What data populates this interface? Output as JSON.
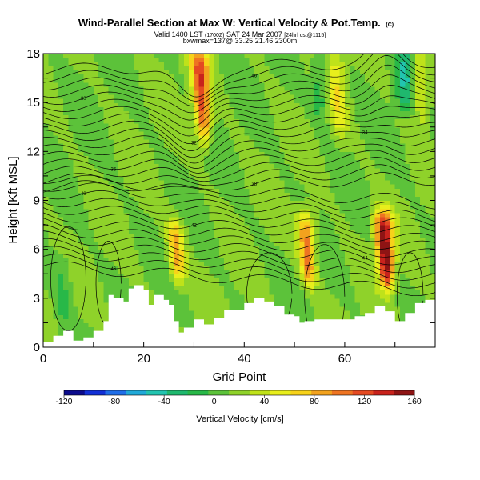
{
  "chart_data": {
    "type": "heatmap",
    "title": "Wind-Parallel Section at Max W: Vertical Velocity & Pot.Temp.",
    "title_unit": "(C)",
    "subtitle_parts": [
      "Valid 1400 LST",
      "(1700Z)",
      "SAT 24 Mar 2007",
      "[24hrl cst@1115]"
    ],
    "subtitle_line2": "bxwmax=137@ 33.25,21.46,2300m",
    "xlabel": "Grid Point",
    "ylabel": "Height [Kft MSL]",
    "xlim": [
      0,
      78
    ],
    "ylim": [
      0,
      18
    ],
    "x_ticks": [
      0,
      20,
      40,
      60
    ],
    "y_ticks": [
      0,
      3,
      6,
      9,
      12,
      15,
      18
    ],
    "colorbar": {
      "title": "Vertical Velocity [cm/s]",
      "min": -120,
      "max": 160,
      "tick_labels": [
        "-120",
        "-80",
        "-40",
        "0",
        "40",
        "80",
        "120",
        "160"
      ],
      "tick_values": [
        -120,
        -80,
        -40,
        0,
        40,
        80,
        120,
        160
      ],
      "colors": [
        "#0b0b8c",
        "#1230d6",
        "#1f6ee8",
        "#20a9d8",
        "#22c4b0",
        "#1fb86e",
        "#28b848",
        "#5cc23a",
        "#8fd22a",
        "#bfe21a",
        "#e8ee1c",
        "#f7d21a",
        "#f2a21e",
        "#ee7422",
        "#e44a22",
        "#c8221c",
        "#8e1414"
      ]
    },
    "terrain_x": [
      0,
      2,
      4,
      6,
      8,
      10,
      12,
      13,
      14,
      16,
      17,
      18,
      20,
      21,
      22,
      24,
      25,
      26,
      27,
      28,
      30,
      32,
      34,
      36,
      38,
      40,
      42,
      44,
      46,
      48,
      50,
      51,
      52,
      54,
      56,
      58,
      60,
      62,
      64,
      66,
      68,
      70,
      72,
      74,
      76,
      78
    ],
    "terrain_y": [
      0.3,
      0.7,
      1.0,
      0.4,
      0.6,
      1.0,
      1.6,
      3.2,
      3.0,
      2.8,
      3.6,
      3.8,
      3.5,
      2.6,
      3.2,
      2.9,
      2.6,
      1.6,
      0.9,
      1.2,
      1.7,
      1.4,
      1.8,
      2.3,
      2.3,
      2.7,
      3.0,
      2.8,
      2.5,
      2.0,
      1.9,
      1.5,
      1.6,
      1.7,
      1.7,
      1.7,
      1.7,
      1.9,
      2.1,
      2.5,
      2.2,
      1.6,
      2.1,
      2.7,
      2.9,
      3.1
    ],
    "updraft_cores": [
      {
        "x": 31.5,
        "z_bottom": 13.0,
        "z_top": 18,
        "w": 110
      },
      {
        "x": 26.5,
        "z_bottom": 4.2,
        "z_top": 7.5,
        "w": 70
      },
      {
        "x": 52.5,
        "z_bottom": 4.0,
        "z_top": 8.0,
        "w": 90
      },
      {
        "x": 68.0,
        "z_bottom": 4.0,
        "z_top": 8.0,
        "w": 150
      },
      {
        "x": 58.5,
        "z_bottom": 13.0,
        "z_top": 18,
        "w": 40
      },
      {
        "x": 75.0,
        "z_bottom": 14.0,
        "z_top": 18,
        "w": 40
      }
    ],
    "downdraft_bands": [
      {
        "x": 72.0,
        "z_bottom": 15.0,
        "z_top": 18,
        "w": -45
      },
      {
        "x": 55.0,
        "z_bottom": 14.5,
        "z_top": 18,
        "w": -30
      },
      {
        "x": 4.0,
        "z_bottom": 1.0,
        "z_top": 5.5,
        "w": -20
      }
    ],
    "isentrope_labels": [
      "46",
      "44",
      "42",
      "40",
      "38",
      "36",
      "34",
      "32",
      "30"
    ]
  }
}
